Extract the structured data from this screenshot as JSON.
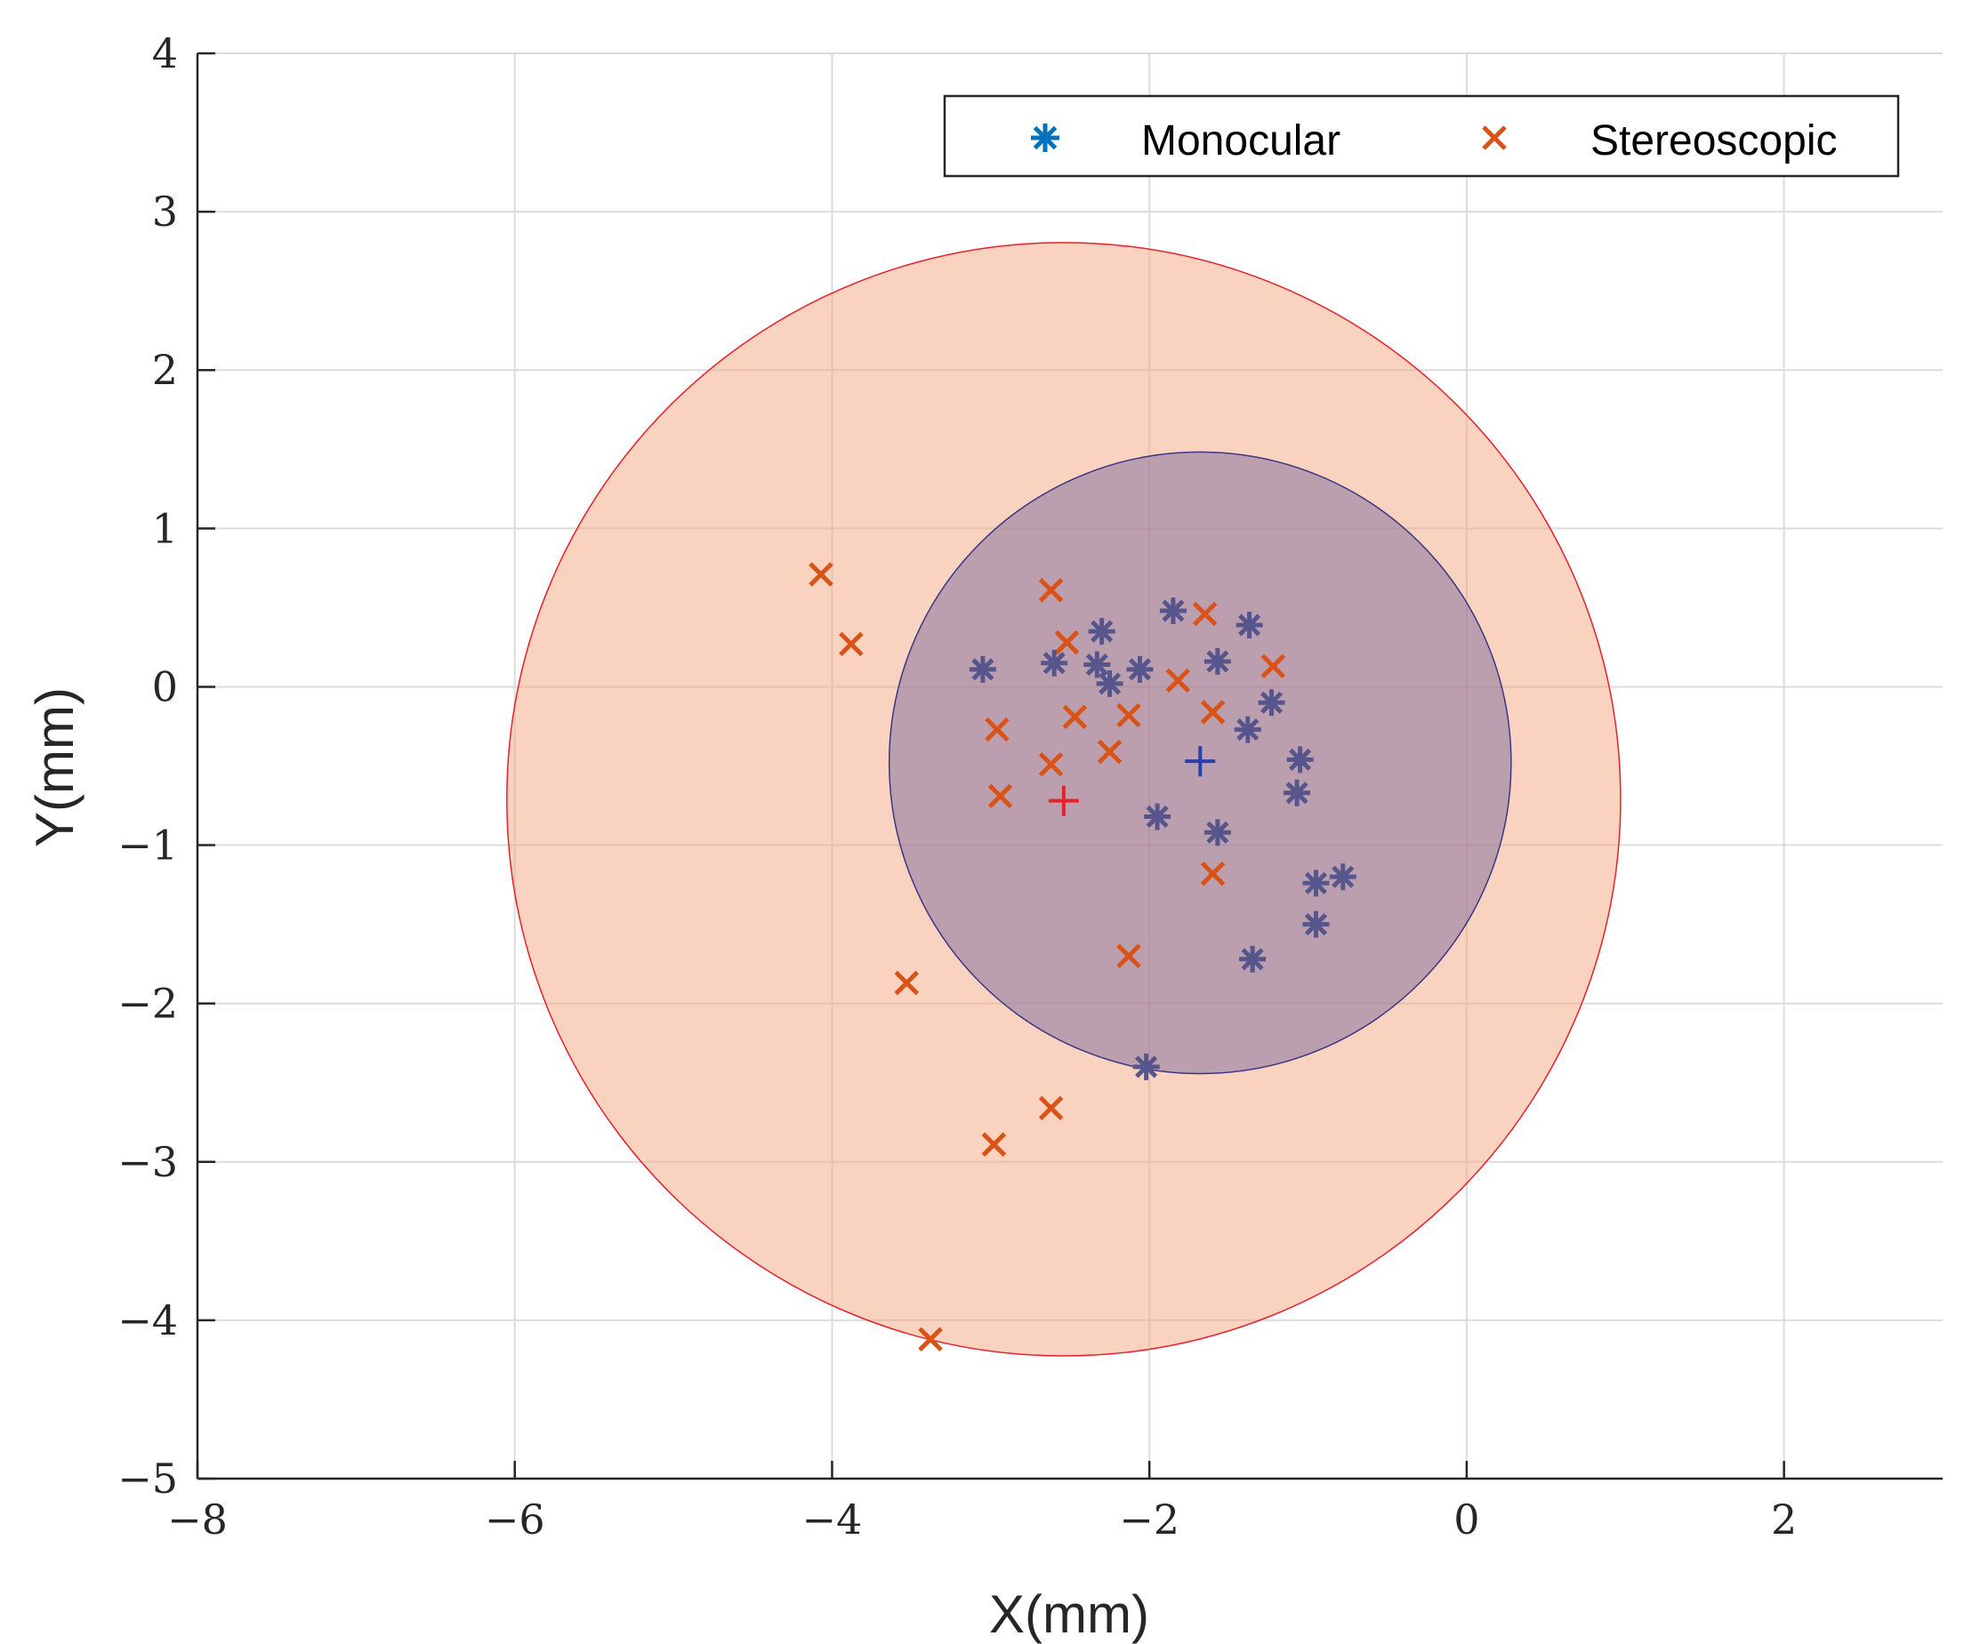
{
  "chart_data": {
    "type": "scatter",
    "title": "",
    "xlabel": "X(mm)",
    "ylabel": "Y(mm)",
    "xlim": [
      -8,
      3
    ],
    "ylim": [
      -5,
      4
    ],
    "grid": true,
    "legend_position": "top-right",
    "x_ticks": [
      -8,
      -6,
      -4,
      -2,
      0,
      2
    ],
    "y_ticks": [
      -5,
      -4,
      -3,
      -2,
      -1,
      0,
      1,
      2,
      3,
      4
    ],
    "x_tick_labels": [
      "−8",
      "−6",
      "−4",
      "−2",
      "0",
      "2"
    ],
    "y_tick_labels": [
      "−5",
      "−4",
      "−3",
      "−2",
      "−1",
      "0",
      "1",
      "2",
      "3",
      "4"
    ],
    "series": [
      {
        "name": "Monocular",
        "marker": "asterisk",
        "color": "#0072BD",
        "points": [
          [
            -1.85,
            0.48
          ],
          [
            -2.3,
            0.35
          ],
          [
            -1.37,
            0.39
          ],
          [
            -3.05,
            0.11
          ],
          [
            -2.6,
            0.15
          ],
          [
            -2.33,
            0.14
          ],
          [
            -2.25,
            0.02
          ],
          [
            -2.06,
            0.11
          ],
          [
            -1.57,
            0.16
          ],
          [
            -1.23,
            -0.1
          ],
          [
            -1.38,
            -0.27
          ],
          [
            -1.05,
            -0.46
          ],
          [
            -1.07,
            -0.67
          ],
          [
            -1.95,
            -0.82
          ],
          [
            -1.57,
            -0.92
          ],
          [
            -0.95,
            -1.24
          ],
          [
            -0.78,
            -1.2
          ],
          [
            -0.95,
            -1.5
          ],
          [
            -1.35,
            -1.72
          ],
          [
            -2.02,
            -2.4
          ]
        ]
      },
      {
        "name": "Stereoscopic",
        "marker": "x",
        "color": "#D95319",
        "points": [
          [
            -4.07,
            0.71
          ],
          [
            -3.88,
            0.27
          ],
          [
            -2.62,
            0.61
          ],
          [
            -2.52,
            0.28
          ],
          [
            -1.65,
            0.46
          ],
          [
            -1.82,
            0.04
          ],
          [
            -1.22,
            0.13
          ],
          [
            -2.96,
            -0.27
          ],
          [
            -2.47,
            -0.19
          ],
          [
            -2.13,
            -0.18
          ],
          [
            -1.6,
            -0.16
          ],
          [
            -2.25,
            -0.41
          ],
          [
            -2.62,
            -0.49
          ],
          [
            -2.94,
            -0.69
          ],
          [
            -1.6,
            -1.18
          ],
          [
            -2.13,
            -1.7
          ],
          [
            -3.53,
            -1.87
          ],
          [
            -2.62,
            -2.66
          ],
          [
            -2.98,
            -2.89
          ],
          [
            -3.38,
            -4.12
          ]
        ]
      }
    ],
    "regions": [
      {
        "name": "Stereoscopic spread circle",
        "center": [
          -2.54,
          -0.71
        ],
        "radius": 3.51,
        "fill": "#F4A582",
        "opacity": 0.5,
        "stroke": "#E8202A"
      },
      {
        "name": "Monocular spread circle",
        "center": [
          -1.68,
          -0.48
        ],
        "radius": 1.96,
        "fill": "#7F6B9E",
        "opacity": 0.5,
        "stroke": "#3A3780"
      }
    ],
    "centroids": [
      {
        "name": "Monocular mean",
        "point": [
          -1.68,
          -0.47
        ],
        "color": "#2B3FA8"
      },
      {
        "name": "Stereoscopic mean",
        "point": [
          -2.54,
          -0.72
        ],
        "color": "#E8202A"
      }
    ]
  },
  "colors": {
    "monocular_marker_on_plot": "#56568C",
    "axis": "#262626",
    "grid": "#DCDCDC"
  }
}
